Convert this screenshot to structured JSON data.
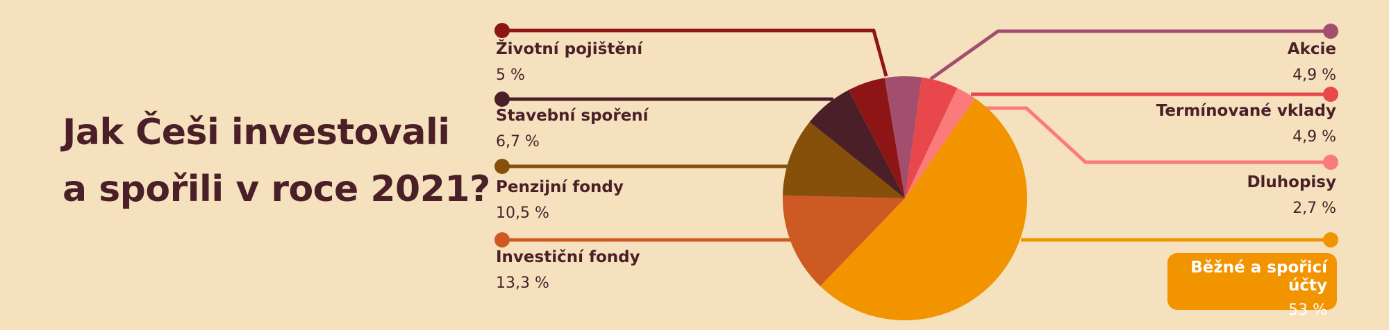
{
  "title": {
    "line1": "Jak Češi investovali",
    "line2": "a spořili v roce 2021?"
  },
  "chart_data": {
    "type": "pie",
    "title": "Jak Češi investovali a spořili v roce 2021?",
    "slices": [
      {
        "key": "bezne",
        "name": "Běžné a spořicí účty",
        "value": 53,
        "label": "53 %",
        "color": "#f29300"
      },
      {
        "key": "investicni",
        "name": "Investiční fondy",
        "value": 13.3,
        "label": "13,3 %",
        "color": "#cd5a22"
      },
      {
        "key": "penzijni",
        "name": "Penzijní fondy",
        "value": 10.5,
        "label": "10,5 %",
        "color": "#87500a"
      },
      {
        "key": "stavebni",
        "name": "Stavební spoření",
        "value": 6.7,
        "label": "6,7 %",
        "color": "#4a1f28"
      },
      {
        "key": "zivotni",
        "name": "Životní pojištění",
        "value": 5,
        "label": "5 %",
        "color": "#8d1515"
      },
      {
        "key": "akcie",
        "name": "Akcie",
        "value": 4.9,
        "label": "4,9 %",
        "color": "#a24e6c"
      },
      {
        "key": "terminovane",
        "name": "Termínované vklady",
        "value": 4.9,
        "label": "4,9 %",
        "color": "#e8474b"
      },
      {
        "key": "dluhopisy",
        "name": "Dluhopisy",
        "value": 2.7,
        "label": "2,7 %",
        "color": "#fb7b7b"
      }
    ],
    "labels": "callout lines",
    "legend": "none"
  }
}
